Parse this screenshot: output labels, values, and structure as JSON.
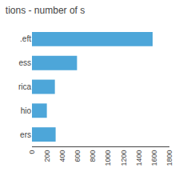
{
  "chart_data": {
    "type": "bar",
    "orientation": "horizontal",
    "title": "tions - number of s",
    "categories": [
      ".eft",
      "ess",
      "rica",
      "hio",
      "ers"
    ],
    "values": [
      1580,
      590,
      300,
      195,
      310
    ],
    "color": "#4da6d9",
    "xlim": [
      0,
      1800
    ],
    "xticks": [
      0,
      200,
      400,
      600,
      800,
      1000,
      1200,
      1400,
      1600,
      1800
    ],
    "grid": false
  }
}
